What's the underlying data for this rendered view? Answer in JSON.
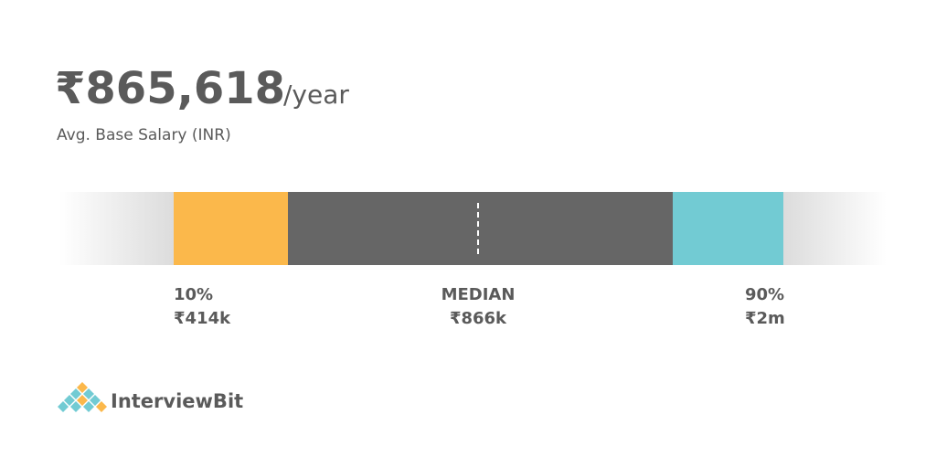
{
  "header": {
    "amount": "₹865,618",
    "unit": "/year",
    "caption": "Avg. Base Salary (INR)"
  },
  "range": {
    "markers": [
      {
        "label": "10%",
        "value": "₹414k"
      },
      {
        "label": "MEDIAN",
        "value": "₹866k"
      },
      {
        "label": "90%",
        "value": "₹2m"
      }
    ]
  },
  "logo": {
    "text": "InterviewBit"
  }
}
